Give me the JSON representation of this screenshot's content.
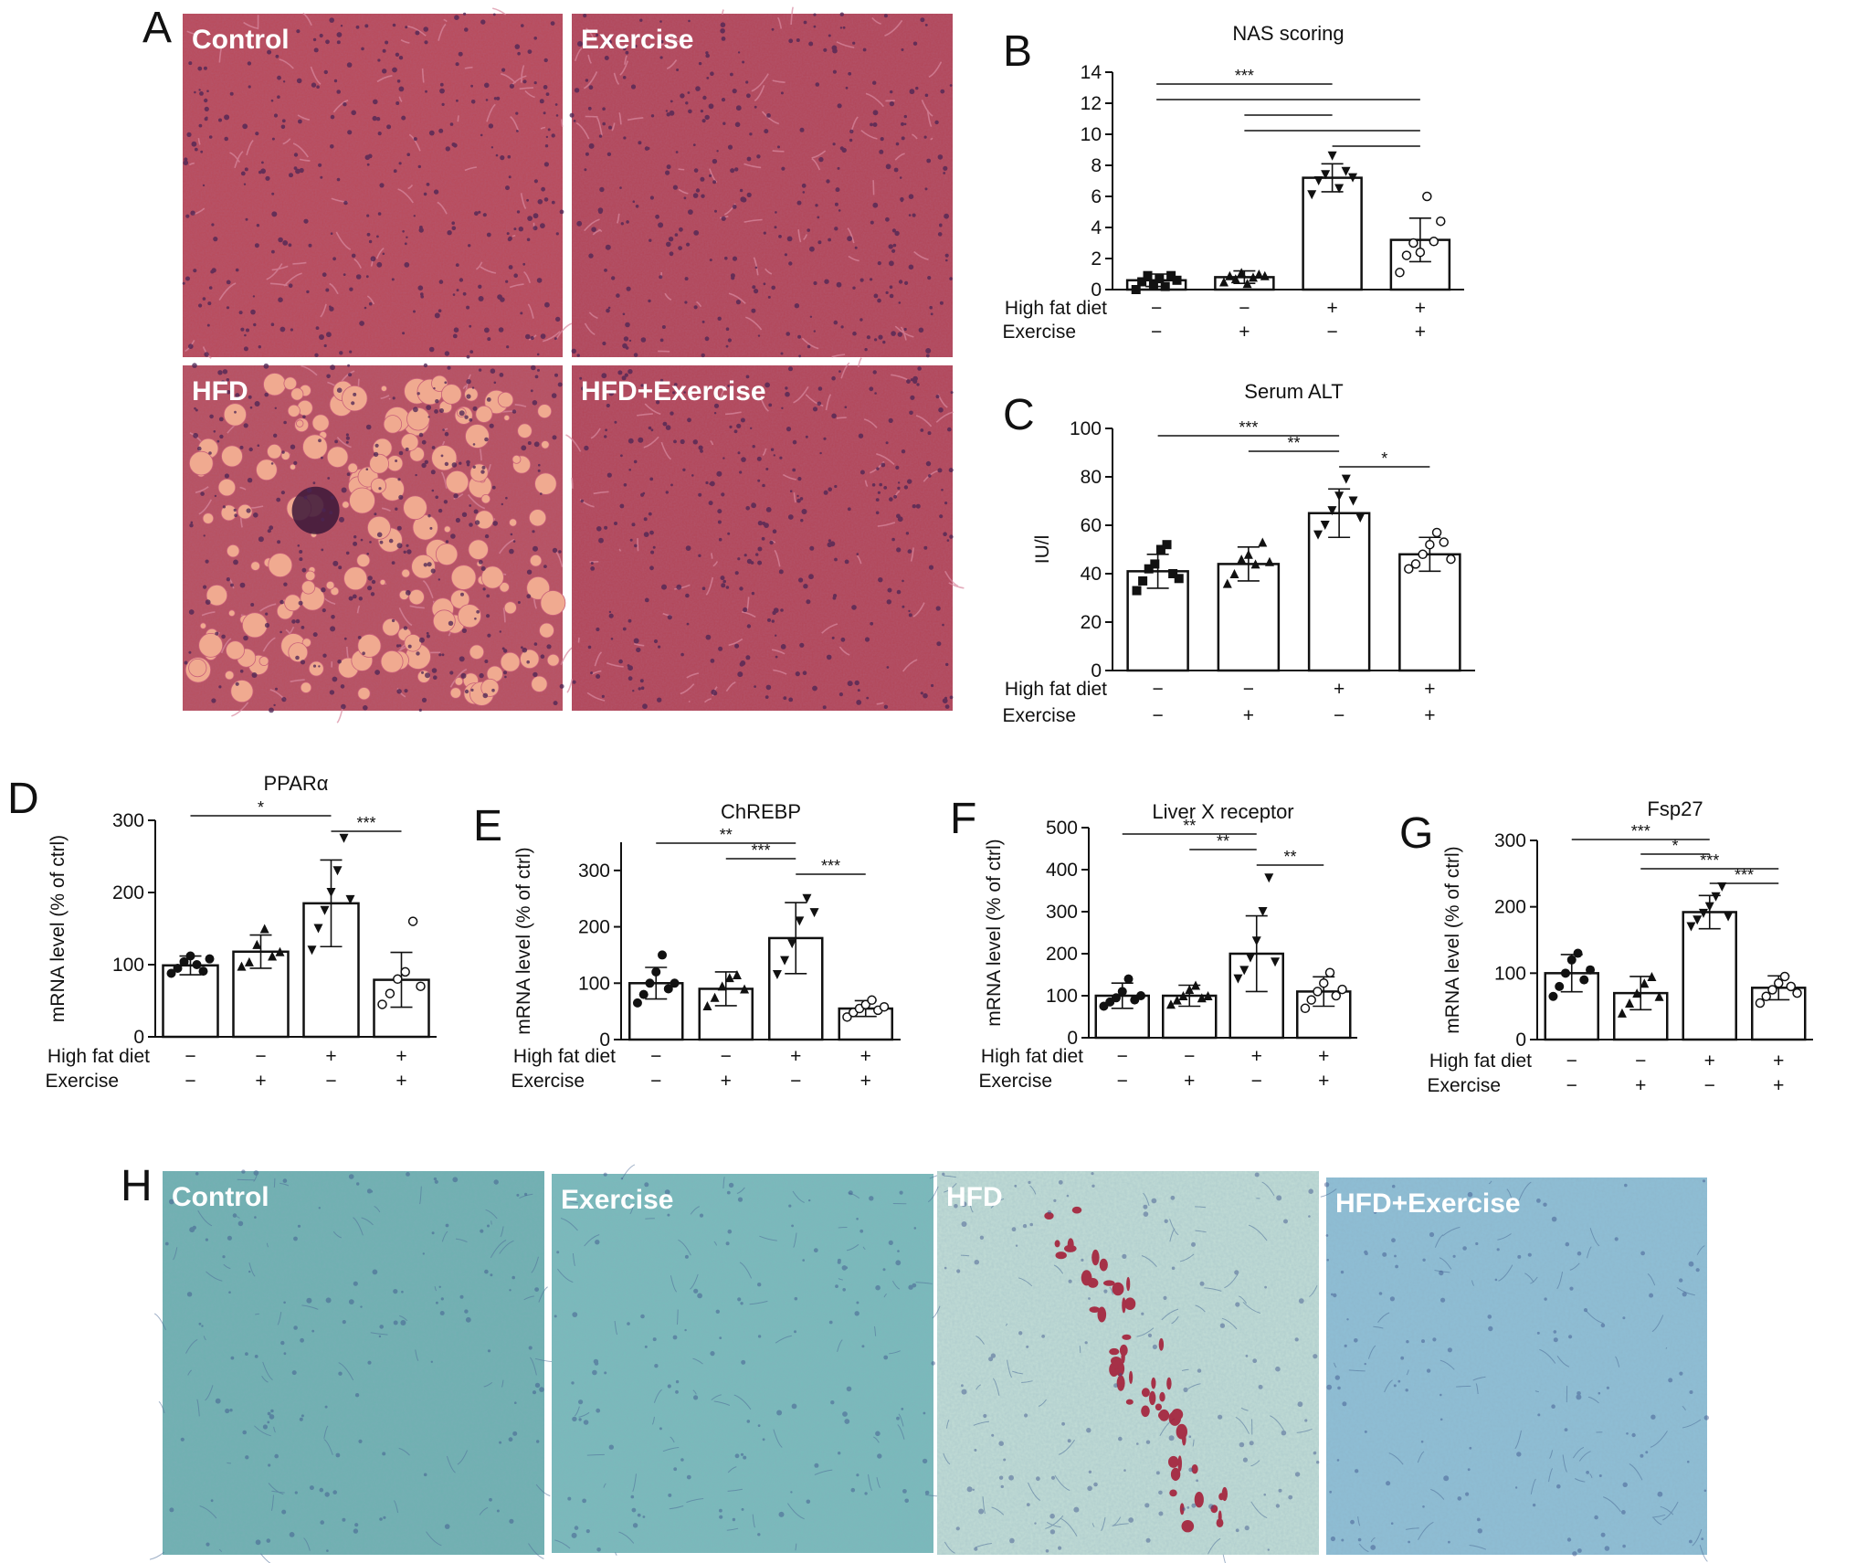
{
  "panel_letters": {
    "A": "A",
    "B": "B",
    "C": "C",
    "D": "D",
    "E": "E",
    "F": "F",
    "G": "G",
    "H": "H"
  },
  "micrographs_A": {
    "panels": [
      {
        "label": "Control",
        "stain": "H&E",
        "bg": "#b94a5a",
        "has_lipid_droplets": false
      },
      {
        "label": "Exercise",
        "stain": "H&E",
        "bg": "#b24658",
        "has_lipid_droplets": false
      },
      {
        "label": "HFD",
        "stain": "H&E",
        "bg": "#b8505f",
        "has_lipid_droplets": true
      },
      {
        "label": "HFD+Exercise",
        "stain": "H&E",
        "bg": "#b24658",
        "has_lipid_droplets": false
      }
    ],
    "colors": {
      "nuclei": "#4a2454",
      "sinusoid": "#d98aa0",
      "droplet": "#f0aa90"
    }
  },
  "micrographs_H": {
    "panels": [
      {
        "label": "Control",
        "bg": "#6fb1b1",
        "red_deposits": false
      },
      {
        "label": "Exercise",
        "bg": "#79bbbb",
        "red_deposits": false
      },
      {
        "label": "HFD",
        "bg": "#c2ddd6",
        "red_deposits": true
      },
      {
        "label": "HFD+Exercise",
        "bg": "#8fbfd6",
        "red_deposits": false
      }
    ],
    "colors": {
      "nuclei": "#3a4f8a",
      "deposit": "#a31530"
    }
  },
  "condition_rows": {
    "high_fat_diet_label": "High fat diet",
    "exercise_label": "Exercise",
    "high_fat_diet": [
      "−",
      "−",
      "+",
      "+"
    ],
    "exercise": [
      "−",
      "+",
      "−",
      "+"
    ]
  },
  "chart_data": [
    {
      "id": "B",
      "type": "bar",
      "title": "NAS scoring",
      "ylabel": "",
      "categories": [
        "Control",
        "Exercise",
        "HFD",
        "HFD+Exercise"
      ],
      "values": [
        0.6,
        0.8,
        7.2,
        3.2
      ],
      "error": [
        0.4,
        0.4,
        0.9,
        1.4
      ],
      "ylim": [
        0,
        14
      ],
      "yticks": [
        0,
        2,
        4,
        6,
        8,
        10,
        12,
        14
      ],
      "markers": [
        "filled-square",
        "filled-triangle",
        "filled-triangle-down",
        "open-circle"
      ],
      "points": [
        [
          0.0,
          0.5,
          0.9,
          0.3,
          0.7,
          0.2,
          0.9,
          0.6
        ],
        [
          0.5,
          0.9,
          0.7,
          1.1,
          0.4,
          0.8,
          1.0,
          0.9
        ],
        [
          6.1,
          7.0,
          7.4,
          8.6,
          6.5,
          7.6,
          7.2
        ],
        [
          1.1,
          2.2,
          3.0,
          2.4,
          6.0,
          3.1,
          4.4
        ]
      ],
      "significance": [
        {
          "from": 0,
          "to": 2,
          "label": "***"
        },
        {
          "from": 0,
          "to": 3,
          "label": ""
        },
        {
          "from": 1,
          "to": 2,
          "label": ""
        },
        {
          "from": 1,
          "to": 3,
          "label": ""
        },
        {
          "from": 2,
          "to": 3,
          "label": ""
        }
      ],
      "grid": false,
      "legend": "none"
    },
    {
      "id": "C",
      "type": "bar",
      "title": "Serum ALT",
      "ylabel": "IU/l",
      "categories": [
        "Control",
        "Exercise",
        "HFD",
        "HFD+Exercise"
      ],
      "values": [
        41,
        44,
        65,
        48
      ],
      "error": [
        7,
        7,
        10,
        7
      ],
      "ylim": [
        0,
        100
      ],
      "yticks": [
        0,
        20,
        40,
        60,
        80,
        100
      ],
      "markers": [
        "filled-square",
        "filled-triangle",
        "filled-triangle-down",
        "open-circle"
      ],
      "points": [
        [
          33,
          37,
          42,
          44,
          50,
          52,
          40,
          38
        ],
        [
          36,
          40,
          46,
          48,
          44,
          53,
          45
        ],
        [
          56,
          60,
          66,
          72,
          79,
          70,
          63
        ],
        [
          42,
          44,
          48,
          52,
          57,
          53,
          46
        ]
      ],
      "significance": [
        {
          "from": 0,
          "to": 2,
          "label": "***"
        },
        {
          "from": 1,
          "to": 2,
          "label": "**"
        },
        {
          "from": 2,
          "to": 3,
          "label": "*"
        }
      ],
      "grid": false,
      "legend": "none"
    },
    {
      "id": "D",
      "type": "bar",
      "title": "PPARα",
      "ylabel": "mRNA level (% of ctrl)",
      "categories": [
        "Control",
        "Exercise",
        "HFD",
        "HFD+Exercise"
      ],
      "values": [
        99,
        118,
        185,
        79
      ],
      "error": [
        13,
        23,
        60,
        38
      ],
      "ylim": [
        0,
        300
      ],
      "yticks": [
        0,
        100,
        200,
        300
      ],
      "markers": [
        "filled-circle",
        "filled-triangle",
        "filled-triangle-down",
        "open-circle"
      ],
      "points": [
        [
          88,
          95,
          104,
          112,
          100,
          91,
          108
        ],
        [
          98,
          104,
          128,
          150,
          112,
          118
        ],
        [
          120,
          150,
          175,
          200,
          230,
          275,
          190
        ],
        [
          45,
          60,
          80,
          90,
          160,
          70
        ]
      ],
      "significance": [
        {
          "from": 0,
          "to": 2,
          "label": "*"
        },
        {
          "from": 2,
          "to": 3,
          "label": "***"
        }
      ],
      "grid": false,
      "legend": "none"
    },
    {
      "id": "E",
      "type": "bar",
      "title": "ChREBP",
      "ylabel": "mRNA level (% of ctrl)",
      "categories": [
        "Control",
        "Exercise",
        "HFD",
        "HFD+Exercise"
      ],
      "values": [
        100,
        90,
        180,
        55
      ],
      "error": [
        28,
        30,
        63,
        14
      ],
      "ylim": [
        0,
        350
      ],
      "yticks": [
        0,
        100,
        200,
        300
      ],
      "markers": [
        "filled-circle",
        "filled-triangle",
        "filled-triangle-down",
        "open-circle"
      ],
      "points": [
        [
          65,
          80,
          100,
          120,
          150,
          90,
          100
        ],
        [
          60,
          75,
          95,
          110,
          115,
          90
        ],
        [
          115,
          140,
          170,
          210,
          250,
          225
        ],
        [
          40,
          48,
          55,
          62,
          70,
          52,
          58
        ]
      ],
      "significance": [
        {
          "from": 0,
          "to": 2,
          "label": "**"
        },
        {
          "from": 1,
          "to": 2,
          "label": "***"
        },
        {
          "from": 2,
          "to": 3,
          "label": "***"
        }
      ],
      "grid": false,
      "legend": "none"
    },
    {
      "id": "F",
      "type": "bar",
      "title": "Liver X receptor",
      "ylabel": "mRNA level (% of ctrl)",
      "categories": [
        "Control",
        "Exercise",
        "HFD",
        "HFD+Exercise"
      ],
      "values": [
        100,
        100,
        200,
        110
      ],
      "error": [
        30,
        25,
        90,
        35
      ],
      "ylim": [
        0,
        500
      ],
      "yticks": [
        0,
        100,
        200,
        300,
        400,
        500
      ],
      "markers": [
        "filled-circle",
        "filled-triangle",
        "filled-triangle-down",
        "open-circle"
      ],
      "points": [
        [
          75,
          85,
          95,
          110,
          140,
          90,
          100
        ],
        [
          80,
          90,
          100,
          115,
          125,
          95,
          100
        ],
        [
          140,
          160,
          190,
          230,
          300,
          380,
          180
        ],
        [
          70,
          90,
          110,
          130,
          155,
          100,
          115
        ]
      ],
      "significance": [
        {
          "from": 0,
          "to": 2,
          "label": "**"
        },
        {
          "from": 1,
          "to": 2,
          "label": "**"
        },
        {
          "from": 2,
          "to": 3,
          "label": "**"
        }
      ],
      "grid": false,
      "legend": "none"
    },
    {
      "id": "G",
      "type": "bar",
      "title": "Fsp27",
      "ylabel": "mRNA level (% of ctrl)",
      "categories": [
        "Control",
        "Exercise",
        "HFD",
        "HFD+Exercise"
      ],
      "values": [
        100,
        70,
        192,
        78
      ],
      "error": [
        28,
        25,
        25,
        18
      ],
      "ylim": [
        0,
        300
      ],
      "yticks": [
        0,
        100,
        200,
        300
      ],
      "markers": [
        "filled-circle",
        "filled-triangle",
        "filled-triangle-down",
        "open-circle"
      ],
      "points": [
        [
          65,
          80,
          100,
          120,
          130,
          90,
          105
        ],
        [
          40,
          55,
          70,
          85,
          95,
          65
        ],
        [
          170,
          180,
          190,
          200,
          215,
          230,
          185
        ],
        [
          55,
          65,
          75,
          85,
          95,
          80,
          70
        ]
      ],
      "significance": [
        {
          "from": 0,
          "to": 2,
          "label": "***"
        },
        {
          "from": 1,
          "to": 2,
          "label": "*"
        },
        {
          "from": 1,
          "to": 3,
          "label": "***"
        },
        {
          "from": 2,
          "to": 3,
          "label": "***"
        }
      ],
      "grid": false,
      "legend": "none"
    }
  ]
}
